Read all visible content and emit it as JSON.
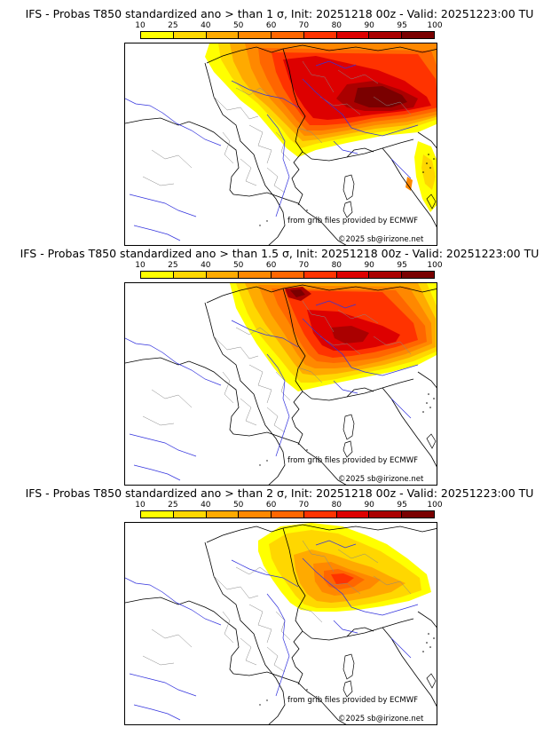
{
  "colors": {
    "levels": [
      "#ffff00",
      "#ffd700",
      "#ffaa00",
      "#ff8800",
      "#ff6600",
      "#ff3300",
      "#dd0000",
      "#aa0000",
      "#7a0000"
    ]
  },
  "colorbar": {
    "ticks": [
      "10",
      "25",
      "40",
      "50",
      "60",
      "70",
      "80",
      "90",
      "95",
      "100"
    ]
  },
  "panels": [
    {
      "title": "IFS - Probas T850  standardized ano > than 1 σ, Init: 20251218 00z - Valid: 20251223:00 TU",
      "source_credit": "from grib files provided by ECMWF",
      "copyright": "©2025 sb@irizone.net"
    },
    {
      "title": "IFS - Probas T850  standardized ano > than 1.5 σ, Init: 20251218 00z - Valid: 20251223:00 TU",
      "source_credit": "from grib files provided by ECMWF",
      "copyright": "©2025 sb@irizone.net"
    },
    {
      "title": "IFS - Probas T850  standardized ano > than 2 σ, Init: 20251218 00z - Valid: 20251223:00 TU",
      "source_credit": "from grib files provided by ECMWF",
      "copyright": "©2025 sb@irizone.net"
    }
  ]
}
